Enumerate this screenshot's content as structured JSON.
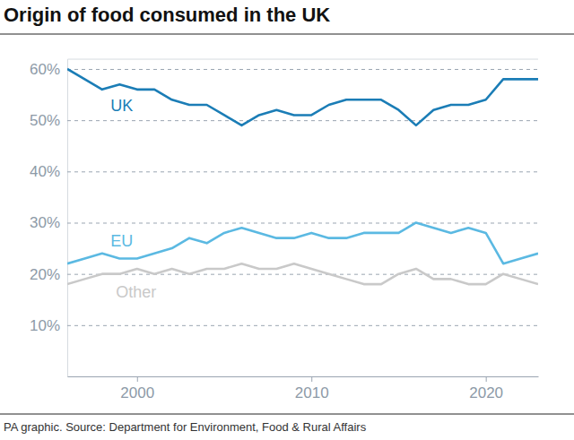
{
  "chart_data": {
    "type": "line",
    "title": "Origin of food consumed in the UK",
    "source": "PA graphic. Source: Department for Environment, Food & Rural Affairs",
    "x": [
      1996,
      1997,
      1998,
      1999,
      2000,
      2001,
      2002,
      2003,
      2004,
      2005,
      2006,
      2007,
      2008,
      2009,
      2010,
      2011,
      2012,
      2013,
      2014,
      2015,
      2016,
      2017,
      2018,
      2019,
      2020,
      2021,
      2022,
      2023
    ],
    "series": [
      {
        "name": "UK",
        "color": "#1b7db6",
        "values": [
          60,
          58,
          56,
          57,
          56,
          56,
          54,
          53,
          53,
          51,
          49,
          51,
          52,
          51,
          51,
          53,
          54,
          54,
          54,
          52,
          49,
          52,
          53,
          53,
          54,
          58,
          58,
          58
        ]
      },
      {
        "name": "EU",
        "color": "#5bb9e2",
        "values": [
          22,
          23,
          24,
          23,
          23,
          24,
          25,
          27,
          26,
          28,
          29,
          28,
          27,
          27,
          28,
          27,
          27,
          28,
          28,
          28,
          30,
          29,
          28,
          29,
          28,
          22,
          23,
          24
        ]
      },
      {
        "name": "Other",
        "color": "#c9c9c9",
        "values": [
          18,
          19,
          20,
          20,
          21,
          20,
          21,
          20,
          21,
          21,
          22,
          21,
          21,
          22,
          21,
          20,
          19,
          18,
          18,
          20,
          21,
          19,
          19,
          18,
          18,
          20,
          19,
          18
        ]
      }
    ],
    "xlim": [
      1996,
      2023
    ],
    "xticks": [
      2000,
      2010,
      2020
    ],
    "ylim": [
      0,
      62
    ],
    "yticks": [
      {
        "value": 10,
        "label": "10%"
      },
      {
        "value": 20,
        "label": "20%"
      },
      {
        "value": 30,
        "label": "30%"
      },
      {
        "value": 40,
        "label": "40%"
      },
      {
        "value": 50,
        "label": "50%"
      },
      {
        "value": 60,
        "label": "60%"
      }
    ],
    "grid": true
  }
}
